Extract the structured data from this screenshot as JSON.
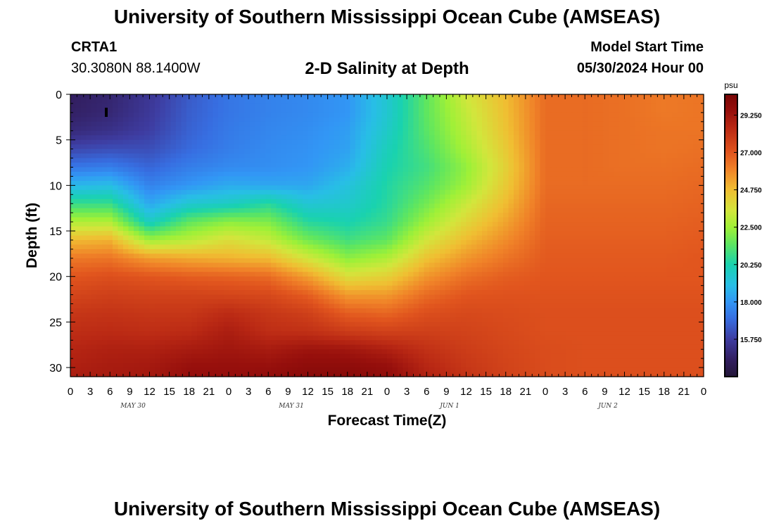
{
  "page": {
    "title_top": "University of Southern Mississippi Ocean Cube (AMSEAS)",
    "title_bottom": "University of Southern Mississippi Ocean Cube (AMSEAS)",
    "station_id": "CRTA1",
    "station_coords": "30.3080N  88.1400W",
    "subtitle": "2-D Salinity at Depth",
    "model_start_label": "Model Start Time",
    "model_start_value": "05/30/2024 Hour 00"
  },
  "chart_data": {
    "type": "heatmap",
    "title": "2-D Salinity at Depth",
    "xlabel": "Forecast Time(Z)",
    "ylabel": "Depth (ft)",
    "units": "psu",
    "x_hours_range": [
      0,
      96
    ],
    "x_tick_labels": [
      "0",
      "3",
      "6",
      "9",
      "12",
      "15",
      "18",
      "21",
      "0",
      "3",
      "6",
      "9",
      "12",
      "15",
      "18",
      "21",
      "0",
      "3",
      "6",
      "9",
      "12",
      "15",
      "18",
      "21",
      "0",
      "3",
      "6",
      "9",
      "12",
      "15",
      "18",
      "21",
      "0"
    ],
    "day_labels": [
      "MAY 30",
      "MAY 31",
      "JUN 1",
      "JUN 2"
    ],
    "y_range": [
      0,
      31
    ],
    "y_reversed": true,
    "y_tick_values": [
      0,
      5,
      10,
      15,
      20,
      25,
      30
    ],
    "colorbar": {
      "range": [
        13.5,
        30.5
      ],
      "tick_labels": [
        "29.250",
        "27.000",
        "24.750",
        "22.500",
        "20.250",
        "18.000",
        "15.750"
      ],
      "tick_values": [
        29.25,
        27.0,
        24.75,
        22.5,
        20.25,
        18.0,
        15.75
      ]
    },
    "depth_levels_ft": [
      0,
      2,
      4,
      6,
      8,
      10,
      12,
      14,
      16,
      18,
      20,
      22,
      24,
      26,
      28,
      30,
      31
    ],
    "time_hours": [
      0,
      6,
      12,
      18,
      24,
      30,
      36,
      42,
      48,
      54,
      60,
      66,
      72,
      78,
      84,
      90,
      96
    ],
    "salinity_psu": [
      [
        14.5,
        14.8,
        15.5,
        16.5,
        17.2,
        17.5,
        17.7,
        18.0,
        19.5,
        21.5,
        23.5,
        24.8,
        26.5,
        26.5,
        26.4,
        26.2,
        26.3
      ],
      [
        14.6,
        14.9,
        15.6,
        16.6,
        17.2,
        17.5,
        17.7,
        18.0,
        19.5,
        21.5,
        23.2,
        24.7,
        26.5,
        26.5,
        26.4,
        26.2,
        26.3
      ],
      [
        15.0,
        15.3,
        15.8,
        16.7,
        17.3,
        17.6,
        17.8,
        18.2,
        19.7,
        21.4,
        23.0,
        24.6,
        26.5,
        26.5,
        26.4,
        26.3,
        26.3
      ],
      [
        16.0,
        16.2,
        16.2,
        16.9,
        17.4,
        17.7,
        17.9,
        18.3,
        20.0,
        21.2,
        22.7,
        24.4,
        26.5,
        26.5,
        26.4,
        26.3,
        26.4
      ],
      [
        17.2,
        17.4,
        16.8,
        17.4,
        17.7,
        17.8,
        18.0,
        18.6,
        20.2,
        21.0,
        22.3,
        24.2,
        26.5,
        26.5,
        26.4,
        26.4,
        26.5
      ],
      [
        18.8,
        19.0,
        17.5,
        18.0,
        18.5,
        18.4,
        18.4,
        19.2,
        20.4,
        21.3,
        22.5,
        24.4,
        26.5,
        26.5,
        26.5,
        26.5,
        26.6
      ],
      [
        20.8,
        20.8,
        18.4,
        19.5,
        19.8,
        20.5,
        19.4,
        19.6,
        20.5,
        21.8,
        23.3,
        24.8,
        26.6,
        26.6,
        26.6,
        26.6,
        26.7
      ],
      [
        22.8,
        22.8,
        19.8,
        21.5,
        22.2,
        22.0,
        20.5,
        20.2,
        20.8,
        22.5,
        24.0,
        25.3,
        26.7,
        26.7,
        26.7,
        26.7,
        26.8
      ],
      [
        24.8,
        25.0,
        22.5,
        23.0,
        23.8,
        23.2,
        21.8,
        21.0,
        21.5,
        23.5,
        24.8,
        25.8,
        26.8,
        26.8,
        26.8,
        26.8,
        26.9
      ],
      [
        26.2,
        26.3,
        25.5,
        25.2,
        25.0,
        24.8,
        23.5,
        22.2,
        22.8,
        24.6,
        25.6,
        26.3,
        26.9,
        26.9,
        26.9,
        26.9,
        27.0
      ],
      [
        27.0,
        27.2,
        27.0,
        26.8,
        26.7,
        26.5,
        25.4,
        23.8,
        24.2,
        25.6,
        26.4,
        26.8,
        27.0,
        27.0,
        27.0,
        27.0,
        27.0
      ],
      [
        27.5,
        27.7,
        27.6,
        27.6,
        27.5,
        27.4,
        26.8,
        25.5,
        25.5,
        26.5,
        27.0,
        27.1,
        27.1,
        27.1,
        27.1,
        27.1,
        27.1
      ],
      [
        28.0,
        28.1,
        28.0,
        28.0,
        28.4,
        28.0,
        27.7,
        26.8,
        26.6,
        27.2,
        27.4,
        27.3,
        27.2,
        27.2,
        27.2,
        27.2,
        27.2
      ],
      [
        28.3,
        28.4,
        28.3,
        28.4,
        28.9,
        28.3,
        28.2,
        27.8,
        27.6,
        27.7,
        27.6,
        27.4,
        27.2,
        27.2,
        27.2,
        27.2,
        27.2
      ],
      [
        28.6,
        28.8,
        28.8,
        29.0,
        29.2,
        29.0,
        29.3,
        29.2,
        28.8,
        28.2,
        27.8,
        27.5,
        27.3,
        27.2,
        27.2,
        27.2,
        27.2
      ],
      [
        28.8,
        29.0,
        29.1,
        29.5,
        29.5,
        29.5,
        29.8,
        29.8,
        29.6,
        28.6,
        28.0,
        27.6,
        27.3,
        27.2,
        27.2,
        27.2,
        27.2
      ],
      [
        28.9,
        29.0,
        29.1,
        29.5,
        29.5,
        29.6,
        29.9,
        29.9,
        29.6,
        28.7,
        28.1,
        27.6,
        27.3,
        27.2,
        27.2,
        27.2,
        27.2
      ]
    ]
  }
}
